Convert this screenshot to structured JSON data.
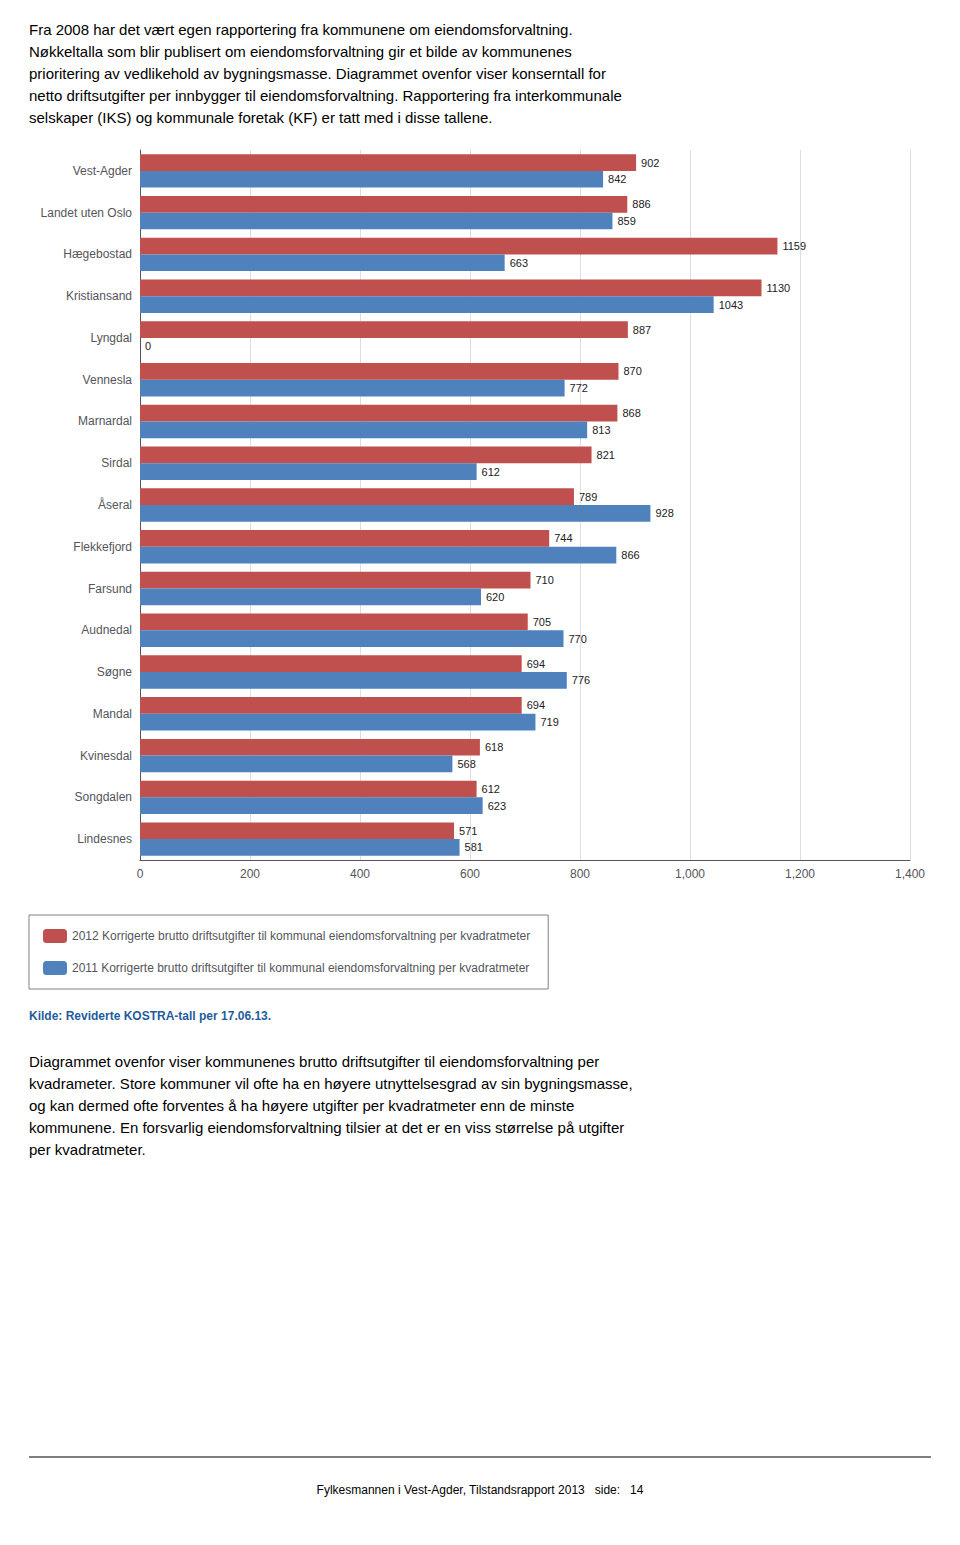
{
  "chart_data": {
    "type": "bar",
    "orientation": "horizontal",
    "categories": [
      "Vest-Agder",
      "Landet uten Oslo",
      "Hægebostad",
      "Kristiansand",
      "Lyngdal",
      "Vennesla",
      "Marnardal",
      "Sirdal",
      "Åseral",
      "Flekkefjord",
      "Farsund",
      "Audnedal",
      "Søgne",
      "Mandal",
      "Kvinesdal",
      "Songdalen",
      "Lindesnes"
    ],
    "series": [
      {
        "name": "2012 Korrigerte brutto driftsutgifter til kommunal eiendomsforvaltning per kvadratmeter",
        "color": "#C0504D",
        "values": [
          902,
          886,
          1159,
          1130,
          887,
          870,
          868,
          821,
          789,
          744,
          710,
          705,
          694,
          694,
          618,
          612,
          571
        ]
      },
      {
        "name": "2011 Korrigerte brutto driftsutgifter til kommunal eiendomsforvaltning per kvadratmeter",
        "color": "#4F81BD",
        "values": [
          842,
          859,
          663,
          1043,
          0,
          772,
          813,
          612,
          928,
          866,
          620,
          770,
          776,
          719,
          568,
          623,
          581
        ]
      }
    ],
    "xlim": [
      0,
      1400
    ],
    "xticks": [
      0,
      200,
      400,
      600,
      800,
      1000,
      1200,
      1400
    ],
    "grid": true,
    "legend": "bottom",
    "data_labels": true,
    "annotations": [
      "Fra 2008 har det vært egen rapportering fra kommunene om eiendomsforvaltning.\nNøkkeltalla som blir publisert om eiendomsforvaltning gir et bilde av kommunenes\nprioritering av vedlikehold av bygningsmasse. Diagrammet ovenfor viser konserntall for\nnetto driftsutgifter per innbygger til eiendomsforvaltning. Rapportering fra interkommunale\nselskaper (IKS) og kommunale foretak (KF) er tatt med i disse tallene.",
      "Kilde: Reviderte KOSTRA-tall per 17.06.13.",
      "Diagrammet ovenfor viser kommunenes brutto driftsutgifter til eiendomsforvaltning per\nkvadrameter. Store kommuner vil ofte ha en høyere utnyttelsesgrad av sin bygningsmasse,\nog kan dermed ofte forventes å ha høyere utgifter per kvadratmeter enn de minste\nkommunene. En forsvarlig eiendomsforvaltning tilsier at det er en viss størrelse på utgifter\nper kvadratmeter.",
      "Fylkesmannen i Vest-Agder, Tilstandsrapport 2013   side:   14"
    ]
  }
}
